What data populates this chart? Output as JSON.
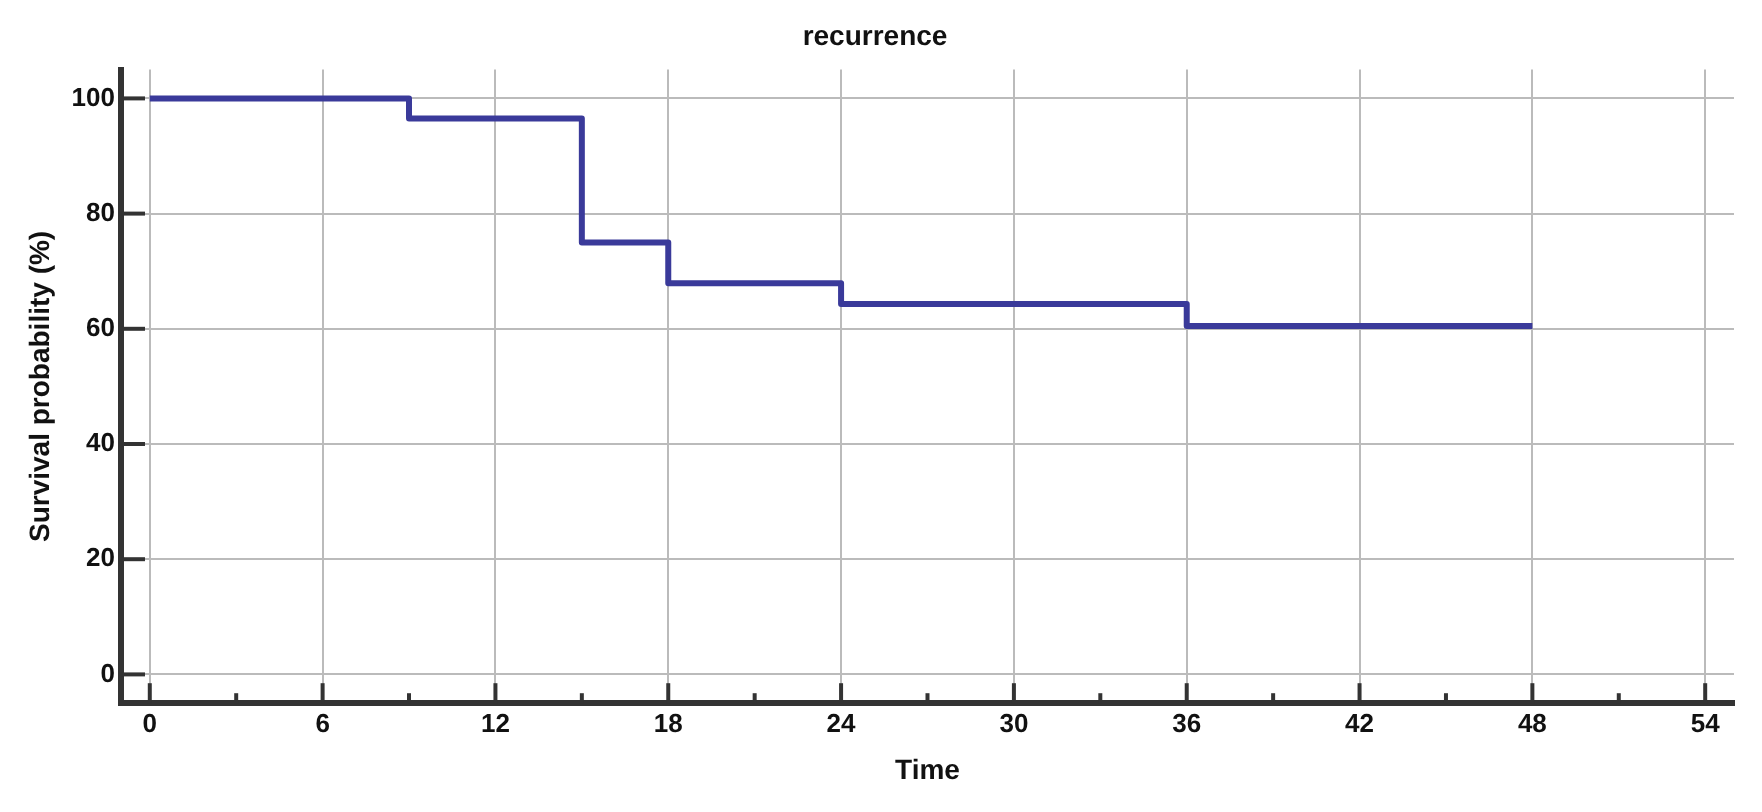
{
  "chart_data": {
    "type": "step",
    "title": "recurrence",
    "xlabel": "Time",
    "ylabel": "Survival probability (%)",
    "x": [
      0,
      9,
      15,
      18,
      24,
      36,
      48
    ],
    "series": [
      {
        "color": "#3a3a9a",
        "values": [
          100,
          96.5,
          75,
          67.9,
          64.3,
          60.5,
          60.5
        ]
      }
    ],
    "xlim": [
      -1,
      55
    ],
    "xticks": [
      0,
      {
        "value": 3,
        "label": null
      },
      6,
      {
        "value": 9,
        "label": null
      },
      12,
      {
        "value": 15,
        "label": null
      },
      18,
      {
        "value": 21,
        "label": null
      },
      24,
      {
        "value": 27,
        "label": null
      },
      30,
      {
        "value": 33,
        "label": null
      },
      36,
      {
        "value": 39,
        "label": null
      },
      42,
      {
        "value": 45,
        "label": null
      },
      48,
      {
        "value": 51,
        "label": null
      },
      54
    ],
    "ylim": [
      -5,
      105
    ],
    "yticks": [
      0,
      20,
      40,
      60,
      80,
      100
    ],
    "grid": true,
    "legend": false,
    "marker": "none",
    "line_style": "solid"
  }
}
